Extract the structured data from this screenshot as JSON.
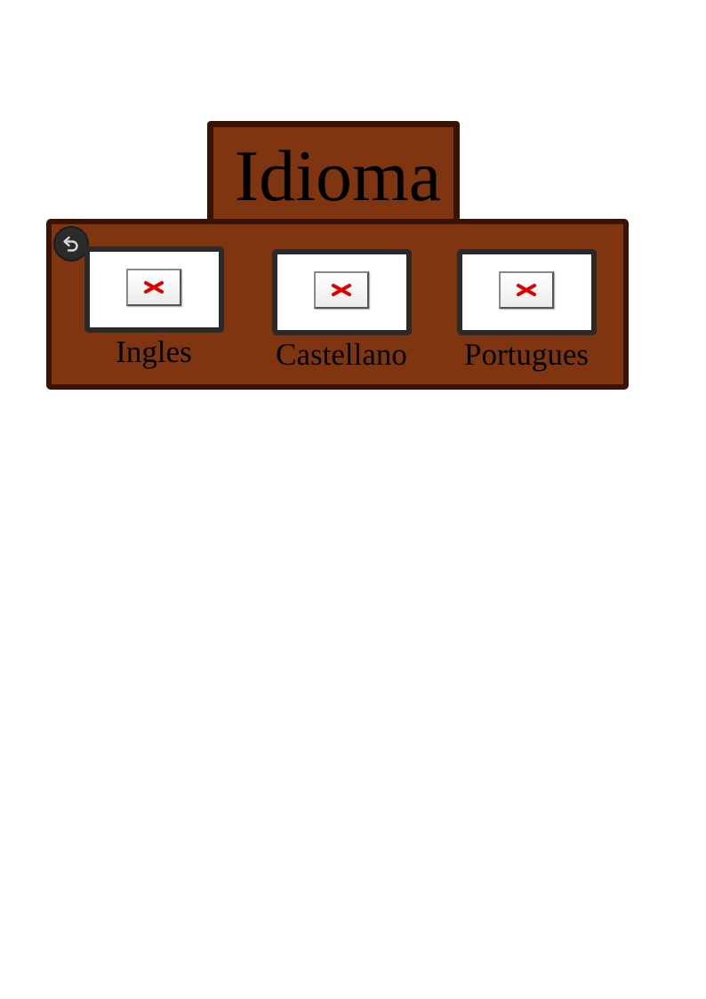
{
  "title": "Idioma",
  "back_button": {
    "icon": "undo-arrow-icon"
  },
  "languages": [
    {
      "label": "Ingles",
      "icon": "broken-image-icon"
    },
    {
      "label": "Castellano",
      "icon": "broken-image-icon"
    },
    {
      "label": "Portugues",
      "icon": "broken-image-icon"
    }
  ],
  "colors": {
    "panel": "#7f3510",
    "panel_border": "#3a1306",
    "frame_border": "#2a2a2a",
    "broken_x": "#e00000"
  }
}
